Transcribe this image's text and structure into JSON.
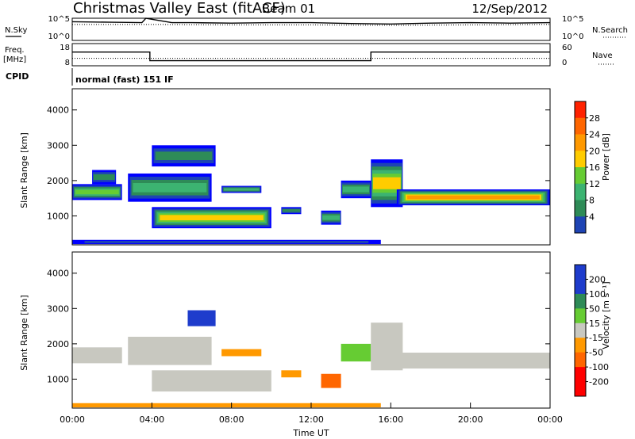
{
  "header": {
    "title": "Christmas Valley East (fitACF)",
    "beam": "Beam 01",
    "date": "12/Sep/2012"
  },
  "colors": {
    "power_scale": [
      "#0000ff",
      "#1e44b4",
      "#2e8b57",
      "#3cb371",
      "#66cc33",
      "#ffcc00",
      "#ff9900",
      "#ff6600",
      "#ff2200"
    ],
    "velocity_scale": [
      "#1e3ccc",
      "#2e8b57",
      "#66cc33",
      "#c8c8c0",
      "#c8c8c0",
      "#ff9900",
      "#ff6600",
      "#ff0000"
    ],
    "ground_scatter": "#c8c8c0"
  },
  "chart_data": [
    {
      "type": "line",
      "panel": "noise",
      "left_label": "N.Sky",
      "right_label": "N.Search",
      "left_ticks": [
        "10^5",
        "10^0"
      ],
      "right_ticks": [
        "10^5",
        "10^0"
      ],
      "series": [
        {
          "name": "N.Sky",
          "x": [
            0,
            2,
            3.5,
            3.7,
            5,
            6,
            8,
            10,
            12,
            14,
            16,
            18,
            20,
            22,
            24
          ],
          "y": [
            4.2,
            4.1,
            4.0,
            5.0,
            4.0,
            4.0,
            3.9,
            4.0,
            4.0,
            3.8,
            3.7,
            3.9,
            4.0,
            3.9,
            4.0
          ]
        },
        {
          "name": "N.Search",
          "x": [
            0,
            4,
            8,
            12,
            16,
            20,
            24
          ],
          "y": [
            3.6,
            3.6,
            3.5,
            3.5,
            3.4,
            3.5,
            3.6
          ]
        }
      ]
    },
    {
      "type": "line",
      "panel": "frequency",
      "left_label": "Freq. [MHz]",
      "right_label": "Nave",
      "left_ticks": [
        18,
        8
      ],
      "right_ticks": [
        60,
        0
      ],
      "series": [
        {
          "name": "Freq",
          "x": [
            0,
            3.9,
            3.9,
            15.0,
            15.0,
            24
          ],
          "y": [
            14.2,
            14.2,
            10.3,
            10.3,
            14.2,
            14.2
          ]
        },
        {
          "name": "Nave",
          "x": [
            0,
            24
          ],
          "y": [
            20,
            20
          ]
        }
      ]
    },
    {
      "type": "text",
      "panel": "cpid",
      "label": "CPID",
      "mode": "normal (fast) 151 IF"
    },
    {
      "type": "heatmap",
      "panel": "power",
      "ylabel": "Slant Range [km]",
      "yticks": [
        1000,
        2000,
        3000,
        4000
      ],
      "ylim": [
        180,
        4600
      ],
      "xlim": [
        0,
        24
      ],
      "colorbar_label": "Power [dB]",
      "colorbar_ticks": [
        4,
        8,
        12,
        16,
        20,
        24,
        28
      ],
      "bands": [
        {
          "x0": 0.0,
          "x1": 2.5,
          "y0": 1450,
          "y1": 1900,
          "peak": 20
        },
        {
          "x0": 1.0,
          "x1": 2.2,
          "y0": 1900,
          "y1": 2300,
          "peak": 12
        },
        {
          "x0": 2.8,
          "x1": 7.0,
          "y0": 1400,
          "y1": 2200,
          "peak": 16
        },
        {
          "x0": 4.0,
          "x1": 7.2,
          "y0": 2400,
          "y1": 3000,
          "peak": 10
        },
        {
          "x0": 7.5,
          "x1": 9.5,
          "y0": 1650,
          "y1": 1850,
          "peak": 16
        },
        {
          "x0": 4.0,
          "x1": 10.0,
          "y0": 650,
          "y1": 1250,
          "peak": 24
        },
        {
          "x0": 10.5,
          "x1": 11.5,
          "y0": 1050,
          "y1": 1250,
          "peak": 12
        },
        {
          "x0": 12.5,
          "x1": 13.5,
          "y0": 750,
          "y1": 1150,
          "peak": 16
        },
        {
          "x0": 13.5,
          "x1": 15.0,
          "y0": 1500,
          "y1": 2000,
          "peak": 14
        },
        {
          "x0": 15.0,
          "x1": 16.6,
          "y0": 1250,
          "y1": 2600,
          "peak": 24
        },
        {
          "x0": 16.3,
          "x1": 24.0,
          "y0": 1300,
          "y1": 1750,
          "peak": 26
        },
        {
          "x0": 0.0,
          "x1": 15.5,
          "y0": 200,
          "y1": 320,
          "peak": 8
        }
      ]
    },
    {
      "type": "heatmap",
      "panel": "velocity",
      "ylabel": "Slant Range [km]",
      "yticks": [
        1000,
        2000,
        3000,
        4000
      ],
      "ylim": [
        180,
        4600
      ],
      "xlim": [
        0,
        24
      ],
      "xlabel": "Time UT",
      "xticks": [
        "00:00",
        "04:00",
        "08:00",
        "12:00",
        "16:00",
        "20:00",
        "00:00"
      ],
      "colorbar_label": "Velocity [m s⁻¹]",
      "colorbar_ticks": [
        200,
        100,
        50,
        15,
        -15,
        -50,
        -100,
        -200
      ],
      "bands": [
        {
          "x0": 0.0,
          "x1": 2.5,
          "y0": 1450,
          "y1": 1900,
          "v": 0
        },
        {
          "x0": 2.8,
          "x1": 7.0,
          "y0": 1400,
          "y1": 2200,
          "v": 0
        },
        {
          "x0": 5.8,
          "x1": 7.2,
          "y0": 2500,
          "y1": 2950,
          "v": 150
        },
        {
          "x0": 7.5,
          "x1": 9.5,
          "y0": 1650,
          "y1": 1850,
          "v": -60
        },
        {
          "x0": 4.0,
          "x1": 10.0,
          "y0": 650,
          "y1": 1250,
          "v": 0
        },
        {
          "x0": 10.5,
          "x1": 11.5,
          "y0": 1050,
          "y1": 1250,
          "v": -60
        },
        {
          "x0": 12.5,
          "x1": 13.5,
          "y0": 750,
          "y1": 1150,
          "v": -80
        },
        {
          "x0": 13.5,
          "x1": 15.0,
          "y0": 1500,
          "y1": 2000,
          "v": 40
        },
        {
          "x0": 15.0,
          "x1": 16.6,
          "y0": 1250,
          "y1": 2600,
          "v": 0
        },
        {
          "x0": 16.3,
          "x1": 24.0,
          "y0": 1300,
          "y1": 1750,
          "v": 0
        },
        {
          "x0": 0.0,
          "x1": 15.5,
          "y0": 200,
          "y1": 320,
          "v": -40
        }
      ]
    }
  ]
}
